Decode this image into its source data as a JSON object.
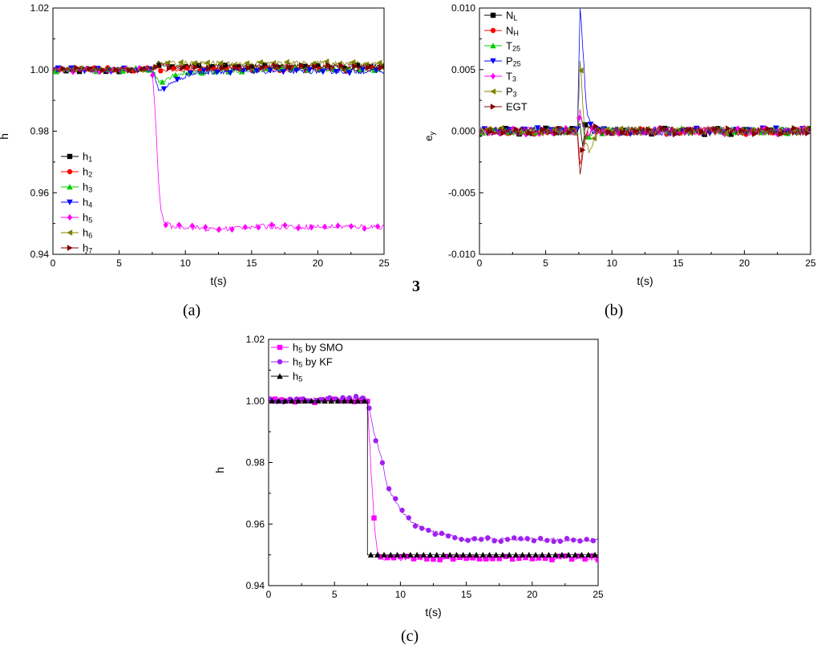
{
  "stray_text": "3",
  "panel_labels": [
    "(a)",
    "(b)",
    "(c)"
  ],
  "chart_data": [
    {
      "id": "a",
      "type": "line",
      "xlabel": "t(s)",
      "ylabel": "h",
      "xlim": [
        0,
        25
      ],
      "ylim": [
        0.94,
        1.02
      ],
      "xticks": [
        0,
        5,
        10,
        15,
        20,
        25
      ],
      "yticks": [
        0.94,
        0.96,
        0.98,
        1.0,
        1.02
      ],
      "ytick_labels": [
        "0.94",
        "0.96",
        "0.98",
        "1.00",
        "1.02"
      ],
      "legend_position": "bottom-left",
      "series": [
        {
          "name": "h1",
          "sub": "1",
          "color": "#000000",
          "marker": "square",
          "x": [
            0,
            7.5,
            8,
            9,
            10,
            15,
            20,
            25
          ],
          "y": [
            1.0,
            1.0,
            1.002,
            1.001,
            1.001,
            1.001,
            1.001,
            1.001
          ]
        },
        {
          "name": "h2",
          "sub": "2",
          "color": "#ff0000",
          "marker": "circle",
          "x": [
            0,
            7.5,
            8,
            9,
            10,
            15,
            20,
            25
          ],
          "y": [
            1.0,
            1.0,
            1.0,
            1.0,
            1.0,
            1.0,
            1.0,
            1.0
          ]
        },
        {
          "name": "h3",
          "sub": "3",
          "color": "#00cc00",
          "marker": "triangle-up",
          "x": [
            0,
            7.5,
            8,
            8.5,
            9,
            10,
            11,
            15,
            20,
            25
          ],
          "y": [
            1.0,
            1.0,
            0.996,
            0.997,
            0.998,
            0.999,
            0.999,
            1.0,
            1.0,
            1.0
          ]
        },
        {
          "name": "h4",
          "sub": "4",
          "color": "#0000ff",
          "marker": "triangle-down",
          "x": [
            0,
            7.5,
            8,
            8.5,
            9,
            10,
            11,
            13,
            15,
            20,
            25
          ],
          "y": [
            1.0,
            1.0,
            0.9935,
            0.994,
            0.996,
            0.998,
            0.999,
            0.9995,
            0.9995,
            0.9995,
            0.9995
          ]
        },
        {
          "name": "h5",
          "sub": "5",
          "color": "#ff00ff",
          "marker": "diamond",
          "x": [
            0,
            3.5,
            7.5,
            7.8,
            8,
            8.2,
            8.5,
            9,
            10,
            12,
            15,
            20,
            25
          ],
          "y": [
            1.0,
            0.9995,
            1.0,
            0.98,
            0.961,
            0.953,
            0.95,
            0.949,
            0.949,
            0.948,
            0.949,
            0.949,
            0.949
          ]
        },
        {
          "name": "h6",
          "sub": "6",
          "color": "#808000",
          "marker": "triangle-left",
          "x": [
            0,
            7.5,
            8,
            9,
            10,
            15,
            20,
            25
          ],
          "y": [
            1.0,
            1.0,
            1.002,
            1.002,
            1.002,
            1.002,
            1.002,
            1.002
          ]
        },
        {
          "name": "h7",
          "sub": "7",
          "color": "#800000",
          "marker": "triangle-right",
          "x": [
            0,
            7.5,
            8,
            9,
            10,
            15,
            20,
            25
          ],
          "y": [
            1.0,
            1.0,
            1.001,
            1.001,
            1.001,
            1.001,
            1.001,
            1.001
          ]
        }
      ]
    },
    {
      "id": "b",
      "type": "line",
      "xlabel": "t(s)",
      "ylabel": "ey",
      "ylabel_sub": "y",
      "xlim": [
        0,
        25
      ],
      "ylim": [
        -0.01,
        0.01
      ],
      "xticks": [
        0,
        5,
        10,
        15,
        20,
        25
      ],
      "yticks": [
        -0.01,
        -0.005,
        0,
        0.005,
        0.01
      ],
      "ytick_labels": [
        "-0.010",
        "-0.005",
        "0.000",
        "0.005",
        "0.010"
      ],
      "legend_position": "top-left",
      "series": [
        {
          "name": "NL",
          "base": "N",
          "sub": "L",
          "color": "#000000",
          "marker": "square",
          "x": [
            0,
            7.4,
            7.6,
            7.8,
            8.0,
            8.5,
            9,
            25
          ],
          "y": [
            0,
            0,
            0.0005,
            -0.001,
            0.0003,
            -0.0002,
            0,
            0
          ]
        },
        {
          "name": "NH",
          "base": "N",
          "sub": "H",
          "color": "#ff0000",
          "marker": "circle",
          "x": [
            0,
            7.4,
            7.6,
            7.8,
            8.0,
            8.5,
            9,
            25
          ],
          "y": [
            0,
            0,
            -0.003,
            -0.0015,
            -0.0005,
            0,
            0,
            0
          ]
        },
        {
          "name": "T25",
          "base": "T",
          "sub": "25",
          "color": "#00cc00",
          "marker": "triangle-up",
          "x": [
            0,
            7.4,
            7.6,
            7.8,
            8.0,
            8.5,
            9,
            25
          ],
          "y": [
            0,
            0,
            0.0015,
            0.0005,
            -0.0005,
            0,
            0,
            0
          ]
        },
        {
          "name": "P25",
          "base": "P",
          "sub": "25",
          "color": "#0000ff",
          "marker": "triangle-down",
          "x": [
            0,
            7.4,
            7.6,
            7.8,
            8.0,
            8.2,
            8.5,
            9,
            25
          ],
          "y": [
            0,
            0,
            0.01,
            0.007,
            0.003,
            0.001,
            0,
            0,
            0
          ]
        },
        {
          "name": "T3",
          "base": "T",
          "sub": "3",
          "color": "#ff00ff",
          "marker": "diamond",
          "x": [
            0,
            7.4,
            7.6,
            7.8,
            8.0,
            8.5,
            9,
            25
          ],
          "y": [
            0,
            0,
            0.0015,
            0.0005,
            -0.0005,
            0,
            0,
            0
          ]
        },
        {
          "name": "P3",
          "base": "P",
          "sub": "3",
          "color": "#808000",
          "marker": "triangle-left",
          "x": [
            0,
            7.4,
            7.6,
            7.8,
            8.0,
            8.3,
            8.6,
            9,
            25
          ],
          "y": [
            0,
            0,
            0.006,
            0.002,
            -0.001,
            -0.0015,
            -0.0008,
            0,
            0
          ]
        },
        {
          "name": "EGT",
          "base": "EGT",
          "sub": "",
          "color": "#800000",
          "marker": "triangle-right",
          "x": [
            0,
            7.4,
            7.6,
            7.8,
            8.0,
            8.5,
            9,
            25
          ],
          "y": [
            0,
            0,
            -0.0035,
            -0.0015,
            0,
            0.0004,
            0,
            0
          ]
        }
      ]
    },
    {
      "id": "c",
      "type": "line",
      "xlabel": "t(s)",
      "ylabel": "h",
      "xlim": [
        0,
        25
      ],
      "ylim": [
        0.94,
        1.02
      ],
      "xticks": [
        0,
        5,
        10,
        15,
        20,
        25
      ],
      "yticks": [
        0.94,
        0.96,
        0.98,
        1.0,
        1.02
      ],
      "ytick_labels": [
        "0.94",
        "0.96",
        "0.98",
        "1.00",
        "1.02"
      ],
      "legend_position": "top-left",
      "series": [
        {
          "name": "h5 by SMO",
          "base": "h",
          "sub": "5",
          "suffix": " by SMO",
          "color": "#ff00ff",
          "marker": "square",
          "x": [
            0,
            7.5,
            7.8,
            8.0,
            8.2,
            8.5,
            9,
            10,
            15,
            20,
            25
          ],
          "y": [
            1.0,
            1.0,
            0.975,
            0.962,
            0.952,
            0.949,
            0.949,
            0.949,
            0.949,
            0.949,
            0.949
          ]
        },
        {
          "name": "h5 by KF",
          "base": "h",
          "sub": "5",
          "suffix": " by KF",
          "color": "#a020f0",
          "marker": "circle",
          "x": [
            0,
            7.5,
            8,
            8.5,
            9,
            10,
            11,
            12,
            13,
            14,
            15,
            17,
            20,
            22,
            25
          ],
          "y": [
            1.0,
            1.001,
            0.989,
            0.983,
            0.972,
            0.965,
            0.96,
            0.958,
            0.957,
            0.956,
            0.955,
            0.955,
            0.955,
            0.955,
            0.955
          ]
        },
        {
          "name": "h5",
          "base": "h",
          "sub": "5",
          "suffix": "",
          "color": "#000000",
          "marker": "triangle-up",
          "x": [
            0,
            7.5,
            7.5,
            25
          ],
          "y": [
            1.0,
            1.0,
            0.95,
            0.95
          ]
        }
      ]
    }
  ]
}
